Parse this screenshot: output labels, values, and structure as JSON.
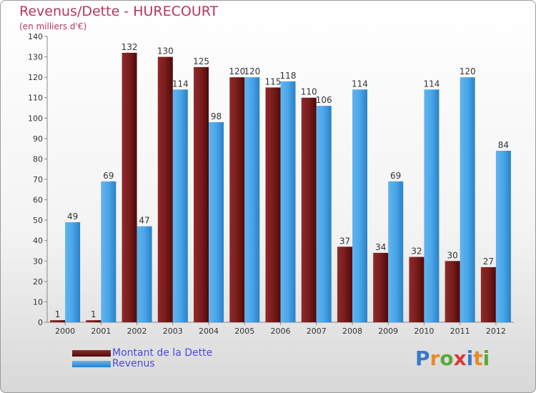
{
  "header": {
    "title": "Revenus/Dette - HURECOURT",
    "unit": "(en milliers d'€)"
  },
  "chart_data": {
    "type": "bar",
    "title": "Revenus/Dette - HURECOURT",
    "ylabel": "(en milliers d'€)",
    "xlabel": "",
    "ylim": [
      0,
      140
    ],
    "yticks": [
      0,
      10,
      20,
      30,
      40,
      50,
      60,
      70,
      80,
      90,
      100,
      110,
      120,
      130,
      140
    ],
    "categories": [
      "2000",
      "2001",
      "2002",
      "2003",
      "2004",
      "2005",
      "2006",
      "2007",
      "2008",
      "2009",
      "2010",
      "2011",
      "2012"
    ],
    "series": [
      {
        "name": "Montant de la Dette",
        "color": "#7a1c1c",
        "values": [
          1,
          1,
          132,
          130,
          125,
          120,
          115,
          110,
          37,
          34,
          32,
          30,
          27
        ]
      },
      {
        "name": "Revenus",
        "color": "#4aa6e8",
        "values": [
          49,
          69,
          47,
          114,
          98,
          120,
          118,
          106,
          114,
          69,
          114,
          120,
          84
        ]
      }
    ],
    "grid": false,
    "legend_position": "bottom-left"
  },
  "legend": {
    "items": [
      {
        "label": "Montant de la Dette",
        "color": "#6b1212"
      },
      {
        "label": "Revenus",
        "color": "#4aa6e8"
      }
    ]
  },
  "logo": {
    "letters": [
      "P",
      "r",
      "o",
      "x",
      "i",
      "t",
      "i"
    ],
    "colors": [
      "#3a78c8",
      "#e88b2a",
      "#5aa83a",
      "#d83a3a",
      "#3a78c8",
      "#e88b2a",
      "#5aa83a"
    ]
  }
}
